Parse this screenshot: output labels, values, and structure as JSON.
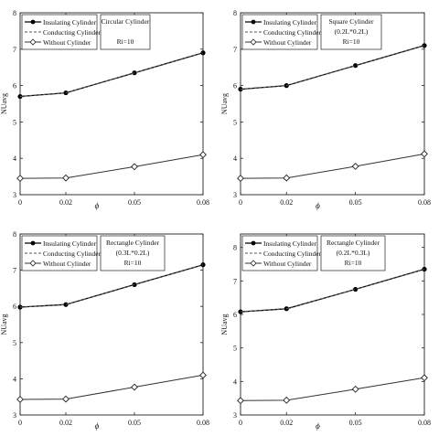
{
  "chart_data": [
    {
      "type": "line",
      "title": "",
      "xlabel": "ϕ",
      "ylabel": "NUavg",
      "x": [
        0,
        0.02,
        0.05,
        0.08
      ],
      "x_tick_labels": [
        "0",
        "0.02",
        "0.05",
        "0.08"
      ],
      "ylim": [
        3,
        8
      ],
      "y_ticks": [
        3,
        4,
        5,
        6,
        7,
        8
      ],
      "legend_position": "top-left",
      "annotation": [
        "Circular Cylinder",
        "",
        "Ri=10"
      ],
      "series": [
        {
          "name": "Insulating Cylinder",
          "marker": "filled-circle",
          "values": [
            5.7,
            5.8,
            6.35,
            6.9
          ]
        },
        {
          "name": "Conducting Cylinder",
          "marker": "none",
          "values": [
            5.7,
            5.8,
            6.35,
            6.9
          ]
        },
        {
          "name": "Without Cylinder",
          "marker": "open-diamond",
          "values": [
            3.45,
            3.46,
            3.77,
            4.1
          ]
        }
      ]
    },
    {
      "type": "line",
      "title": "",
      "xlabel": "ϕ",
      "ylabel": "NUavg",
      "x": [
        0,
        0.02,
        0.05,
        0.08
      ],
      "x_tick_labels": [
        "0",
        "0.02",
        "0.05",
        "0.08"
      ],
      "ylim": [
        3,
        8
      ],
      "y_ticks": [
        3,
        4,
        5,
        6,
        7,
        8
      ],
      "legend_position": "top-left",
      "annotation": [
        "Square Cylinder",
        "(0.2L*0.2L)",
        "Ri=10"
      ],
      "series": [
        {
          "name": "Insulating Cylinder",
          "marker": "filled-circle",
          "values": [
            5.9,
            6.0,
            6.55,
            7.1
          ]
        },
        {
          "name": "Conducting Cylinder",
          "marker": "none",
          "values": [
            5.9,
            6.0,
            6.55,
            7.1
          ]
        },
        {
          "name": "Without Cylinder",
          "marker": "open-diamond",
          "values": [
            3.45,
            3.46,
            3.78,
            4.12
          ]
        }
      ]
    },
    {
      "type": "line",
      "title": "",
      "xlabel": "ϕ",
      "ylabel": "NUavg",
      "x": [
        0,
        0.02,
        0.05,
        0.08
      ],
      "x_tick_labels": [
        "0",
        "0.02",
        "0.05",
        "0.08"
      ],
      "ylim": [
        3,
        8
      ],
      "y_ticks": [
        3,
        4,
        5,
        6,
        7,
        8
      ],
      "legend_position": "top-left",
      "annotation": [
        "Rectangle Cylinder",
        "(0.3L*0.2L)",
        "Ri=10"
      ],
      "series": [
        {
          "name": "Insulating Cylinder",
          "marker": "filled-circle",
          "values": [
            5.98,
            6.05,
            6.6,
            7.15
          ]
        },
        {
          "name": "Conducting Cylinder",
          "marker": "none",
          "values": [
            5.98,
            6.05,
            6.6,
            7.15
          ]
        },
        {
          "name": "Without Cylinder",
          "marker": "open-diamond",
          "values": [
            3.43,
            3.44,
            3.77,
            4.1
          ]
        }
      ]
    },
    {
      "type": "line",
      "title": "",
      "xlabel": "ϕ",
      "ylabel": "NUavg",
      "x": [
        0,
        0.02,
        0.05,
        0.08
      ],
      "x_tick_labels": [
        "0",
        "0.02",
        "0.05",
        "0.08"
      ],
      "ylim": [
        3,
        8.4
      ],
      "y_ticks": [
        3,
        4,
        5,
        6,
        7,
        8
      ],
      "legend_position": "top-left",
      "annotation": [
        "Rectangle Cylinder",
        "(0.2L*0.3L)",
        "Ri=10"
      ],
      "series": [
        {
          "name": "Insulating Cylinder",
          "marker": "filled-circle",
          "values": [
            6.08,
            6.17,
            6.75,
            7.35
          ]
        },
        {
          "name": "Conducting Cylinder",
          "marker": "none",
          "values": [
            6.08,
            6.17,
            6.75,
            7.35
          ]
        },
        {
          "name": "Without Cylinder",
          "marker": "open-diamond",
          "values": [
            3.43,
            3.44,
            3.77,
            4.11
          ]
        }
      ]
    }
  ]
}
